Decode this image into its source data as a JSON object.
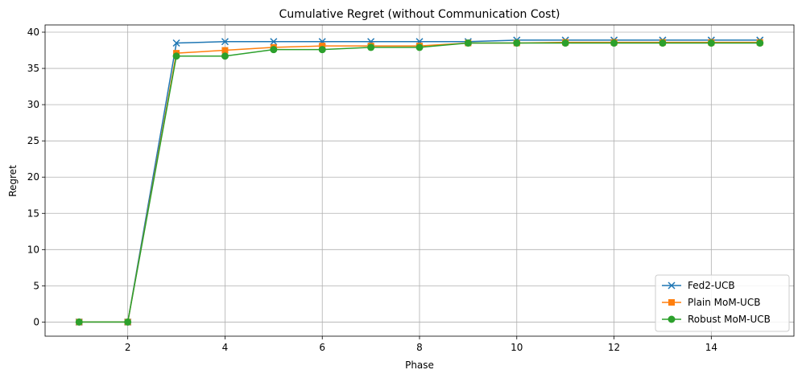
{
  "chart_data": {
    "type": "line",
    "title": "Cumulative Regret (without Communication Cost)",
    "xlabel": "Phase",
    "ylabel": "Regret",
    "xlim": [
      0.3,
      15.7
    ],
    "ylim": [
      -1.95,
      41
    ],
    "xticks": [
      2,
      4,
      6,
      8,
      10,
      12,
      14
    ],
    "yticks": [
      0,
      5,
      10,
      15,
      20,
      25,
      30,
      35,
      40
    ],
    "grid": true,
    "legend_position": "lower-right",
    "x": [
      1,
      2,
      3,
      4,
      5,
      6,
      7,
      8,
      9,
      10,
      11,
      12,
      13,
      14,
      15
    ],
    "series": [
      {
        "name": "Fed2-UCB",
        "color": "#1f77b4",
        "marker": "x",
        "values": [
          0,
          0,
          38.5,
          38.7,
          38.7,
          38.7,
          38.7,
          38.7,
          38.7,
          38.9,
          38.9,
          38.9,
          38.9,
          38.9,
          38.9
        ]
      },
      {
        "name": "Plain MoM-UCB",
        "color": "#ff7f0e",
        "marker": "square",
        "values": [
          0,
          0,
          37.1,
          37.5,
          37.9,
          38.1,
          38.1,
          38.1,
          38.5,
          38.5,
          38.6,
          38.6,
          38.6,
          38.6,
          38.6
        ]
      },
      {
        "name": "Robust MoM-UCB",
        "color": "#2ca02c",
        "marker": "circle",
        "values": [
          0,
          0,
          36.7,
          36.7,
          37.6,
          37.6,
          37.9,
          37.9,
          38.5,
          38.5,
          38.5,
          38.5,
          38.5,
          38.5,
          38.5
        ]
      }
    ]
  }
}
